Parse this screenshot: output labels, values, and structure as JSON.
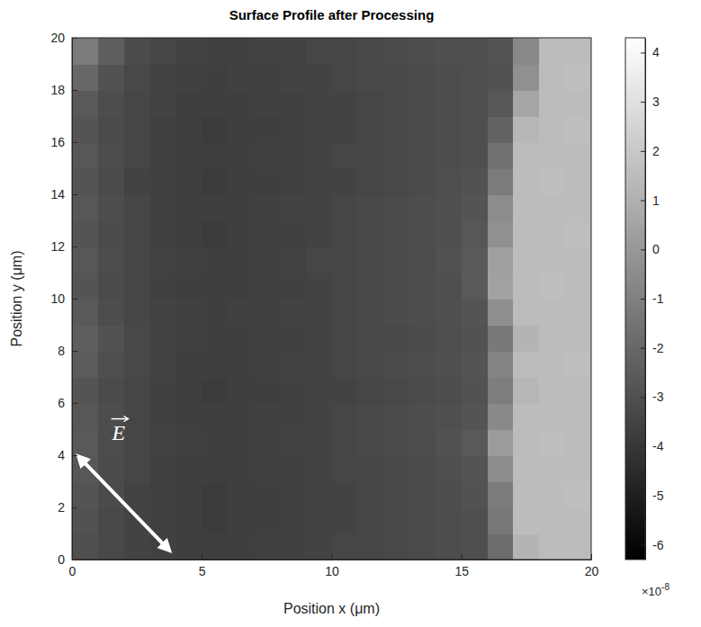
{
  "chart_data": {
    "type": "heatmap",
    "title": "Surface Profile after Processing",
    "x_label": "Position x (μm)",
    "y_label": "Position y (μm)",
    "xlim": [
      0,
      20
    ],
    "ylim": [
      0,
      20
    ],
    "xticks": [
      0,
      5,
      10,
      15,
      20
    ],
    "yticks": [
      0,
      2,
      4,
      6,
      8,
      10,
      12,
      14,
      16,
      18,
      20
    ],
    "color": "gray",
    "x_bins": [
      0,
      1,
      2,
      3,
      4,
      5,
      6,
      7,
      8,
      9,
      10,
      11,
      12,
      13,
      14,
      15,
      16,
      17,
      18,
      19,
      20
    ],
    "y_bins": [
      0,
      1,
      2,
      3,
      4,
      5,
      6,
      7,
      8,
      9,
      10,
      11,
      12,
      13,
      14,
      15,
      16,
      17,
      18,
      19,
      20
    ],
    "z": [
      [
        -3.0,
        -3.3,
        -3.5,
        -3.6,
        -3.7,
        -3.7,
        -3.7,
        -3.6,
        -3.6,
        -3.5,
        -3.4,
        -3.4,
        -3.3,
        -3.2,
        -3.1,
        -3.0,
        -1.8,
        1.2,
        1.5,
        1.5
      ],
      [
        -2.9,
        -3.3,
        -3.5,
        -3.6,
        -3.7,
        -3.8,
        -3.7,
        -3.7,
        -3.6,
        -3.5,
        -3.5,
        -3.4,
        -3.3,
        -3.2,
        -3.1,
        -3.0,
        -1.3,
        1.5,
        1.5,
        1.5
      ],
      [
        -2.8,
        -3.2,
        -3.5,
        -3.6,
        -3.7,
        -3.8,
        -3.7,
        -3.7,
        -3.6,
        -3.5,
        -3.5,
        -3.4,
        -3.3,
        -3.2,
        -3.1,
        -2.9,
        -1.2,
        1.5,
        1.5,
        1.6
      ],
      [
        -2.7,
        -3.2,
        -3.4,
        -3.6,
        -3.7,
        -3.7,
        -3.7,
        -3.6,
        -3.6,
        -3.5,
        -3.4,
        -3.4,
        -3.3,
        -3.2,
        -3.0,
        -2.8,
        -0.5,
        1.5,
        1.5,
        1.5
      ],
      [
        -2.6,
        -3.1,
        -3.4,
        -3.5,
        -3.6,
        -3.7,
        -3.7,
        -3.6,
        -3.5,
        -3.5,
        -3.4,
        -3.3,
        -3.2,
        -3.1,
        -2.9,
        -2.6,
        0.2,
        1.5,
        1.6,
        1.5
      ],
      [
        -2.7,
        -3.1,
        -3.4,
        -3.6,
        -3.7,
        -3.7,
        -3.7,
        -3.6,
        -3.6,
        -3.5,
        -3.4,
        -3.3,
        -3.2,
        -3.1,
        -3.0,
        -2.8,
        -0.6,
        1.5,
        1.5,
        1.5
      ],
      [
        -2.8,
        -3.2,
        -3.4,
        -3.6,
        -3.7,
        -3.8,
        -3.7,
        -3.7,
        -3.6,
        -3.5,
        -3.5,
        -3.4,
        -3.3,
        -3.2,
        -3.1,
        -2.9,
        -1.1,
        1.3,
        1.5,
        1.5
      ],
      [
        -2.5,
        -3.0,
        -3.3,
        -3.5,
        -3.7,
        -3.7,
        -3.7,
        -3.6,
        -3.5,
        -3.5,
        -3.4,
        -3.3,
        -3.2,
        -3.1,
        -3.0,
        -2.8,
        -0.8,
        1.5,
        1.5,
        1.6
      ],
      [
        -2.4,
        -2.9,
        -3.3,
        -3.5,
        -3.6,
        -3.7,
        -3.7,
        -3.6,
        -3.6,
        -3.5,
        -3.4,
        -3.3,
        -3.3,
        -3.2,
        -3.0,
        -2.9,
        -1.3,
        1.2,
        1.5,
        1.5
      ],
      [
        -2.6,
        -3.1,
        -3.4,
        -3.5,
        -3.6,
        -3.7,
        -3.6,
        -3.6,
        -3.5,
        -3.5,
        -3.4,
        -3.3,
        -3.2,
        -3.1,
        -3.0,
        -2.8,
        -0.4,
        1.5,
        1.5,
        1.5
      ],
      [
        -2.8,
        -3.2,
        -3.4,
        -3.6,
        -3.7,
        -3.7,
        -3.7,
        -3.6,
        -3.6,
        -3.5,
        -3.4,
        -3.3,
        -3.2,
        -3.1,
        -3.0,
        -2.6,
        0.4,
        1.5,
        1.6,
        1.5
      ],
      [
        -2.7,
        -3.1,
        -3.4,
        -3.5,
        -3.6,
        -3.7,
        -3.7,
        -3.6,
        -3.5,
        -3.4,
        -3.4,
        -3.3,
        -3.2,
        -3.1,
        -2.9,
        -2.6,
        0.3,
        1.5,
        1.5,
        1.5
      ],
      [
        -2.8,
        -3.2,
        -3.4,
        -3.6,
        -3.7,
        -3.8,
        -3.7,
        -3.6,
        -3.6,
        -3.5,
        -3.4,
        -3.3,
        -3.2,
        -3.1,
        -3.0,
        -2.7,
        -0.3,
        1.5,
        1.5,
        1.6
      ],
      [
        -2.7,
        -3.1,
        -3.4,
        -3.6,
        -3.7,
        -3.7,
        -3.7,
        -3.6,
        -3.5,
        -3.5,
        -3.4,
        -3.3,
        -3.2,
        -3.1,
        -3.0,
        -2.8,
        -0.5,
        1.5,
        1.5,
        1.5
      ],
      [
        -2.8,
        -3.2,
        -3.5,
        -3.6,
        -3.7,
        -3.8,
        -3.7,
        -3.7,
        -3.6,
        -3.5,
        -3.5,
        -3.4,
        -3.3,
        -3.2,
        -3.0,
        -2.9,
        -1.2,
        1.5,
        1.6,
        1.5
      ],
      [
        -2.7,
        -3.1,
        -3.4,
        -3.6,
        -3.7,
        -3.7,
        -3.7,
        -3.6,
        -3.6,
        -3.5,
        -3.4,
        -3.4,
        -3.3,
        -3.2,
        -3.1,
        -3.0,
        -1.6,
        1.5,
        1.5,
        1.5
      ],
      [
        -2.8,
        -3.2,
        -3.4,
        -3.6,
        -3.7,
        -3.8,
        -3.7,
        -3.7,
        -3.6,
        -3.5,
        -3.5,
        -3.4,
        -3.3,
        -3.2,
        -3.1,
        -3.0,
        -2.2,
        1.3,
        1.5,
        1.6
      ],
      [
        -2.6,
        -3.1,
        -3.4,
        -3.5,
        -3.7,
        -3.7,
        -3.7,
        -3.6,
        -3.6,
        -3.5,
        -3.5,
        -3.4,
        -3.3,
        -3.2,
        -3.1,
        -3.0,
        -2.7,
        0.6,
        1.5,
        1.5
      ],
      [
        -2.0,
        -2.9,
        -3.3,
        -3.5,
        -3.6,
        -3.7,
        -3.6,
        -3.6,
        -3.5,
        -3.5,
        -3.4,
        -3.3,
        -3.3,
        -3.2,
        -3.1,
        -3.0,
        -2.9,
        -0.3,
        1.5,
        1.6
      ],
      [
        -1.2,
        -2.4,
        -3.2,
        -3.4,
        -3.5,
        -3.6,
        -3.6,
        -3.5,
        -3.5,
        -3.4,
        -3.4,
        -3.3,
        -3.2,
        -3.1,
        -3.0,
        -3.0,
        -2.8,
        -0.6,
        1.5,
        1.5
      ]
    ],
    "colorbar": {
      "range": [
        -6.3,
        4.3
      ],
      "ticks": [
        -6,
        -5,
        -4,
        -3,
        -2,
        -1,
        0,
        1,
        2,
        3,
        4
      ],
      "multiplier": "×10",
      "exponent": "-8"
    },
    "annotations": [
      {
        "text": "E",
        "x": 1.8,
        "y": 4.6,
        "arrow": [
          [
            0.3,
            3.9
          ],
          [
            3.7,
            0.4
          ]
        ]
      }
    ]
  }
}
